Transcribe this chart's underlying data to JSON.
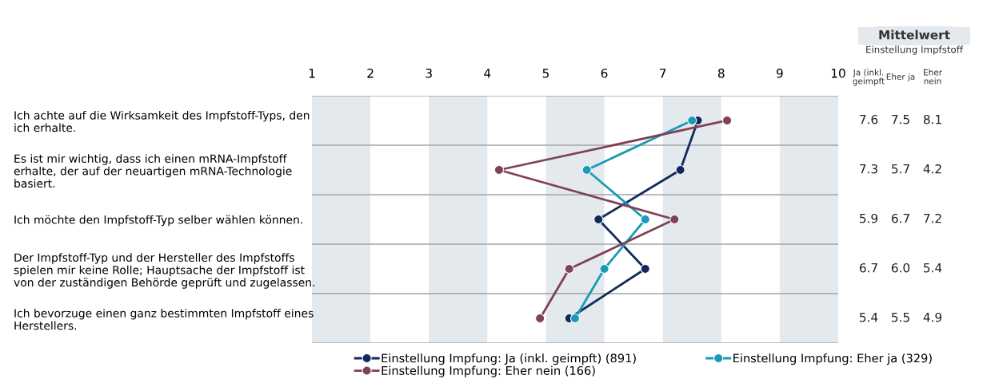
{
  "chart_data": {
    "type": "line",
    "orientation": "horizontal",
    "categories": [
      "Ich achte auf die Wirksamkeit des Impfstoff-Typs, den\nich erhalte.",
      "Es ist mir wichtig, dass ich einen mRNA-Impfstoff\nerhalte, der auf der neuartigen mRNA-Technologie\nbasiert.",
      "Ich möchte den Impfstoff-Typ selber wählen können.",
      "Der Impfstoff-Typ und der Hersteller des Impfstoffs\nspielen mir keine Rolle; Hauptsache der Impfstoff ist\nvon der zuständigen Behörde geprüft und zugelassen.",
      "Ich bevorzuge einen ganz bestimmten Impfstoff eines\nHerstellers."
    ],
    "series": [
      {
        "name": "Einstellung Impfung: Ja (inkl. geimpft) (891)",
        "color": "#13285a",
        "values": [
          7.6,
          7.3,
          5.9,
          6.7,
          5.4
        ],
        "value_labels": [
          "7.6",
          "7.3",
          "5.9",
          "6.7",
          "5.4"
        ]
      },
      {
        "name": "Einstellung Impfung: Eher ja (329)",
        "color": "#1a9ab3",
        "values": [
          7.5,
          5.7,
          6.7,
          6.0,
          5.5
        ],
        "value_labels": [
          "7.5",
          "5.7",
          "6.7",
          "6.0",
          "5.5"
        ]
      },
      {
        "name": "Einstellung Impfung: Eher nein (166)",
        "color": "#7e4255",
        "values": [
          8.1,
          4.2,
          7.2,
          5.4,
          4.9
        ],
        "value_labels": [
          "8.1",
          "4.2",
          "7.2",
          "5.4",
          "4.9"
        ]
      }
    ],
    "xlim": [
      1,
      10
    ],
    "xticks": [
      1,
      2,
      3,
      4,
      5,
      6,
      7,
      8,
      9,
      10
    ],
    "bands": [
      {
        "axis": "x",
        "from": 1,
        "to": 2,
        "color": "#e4e9ee"
      },
      {
        "axis": "x",
        "from": 3,
        "to": 4,
        "color": "#e4e9ee"
      },
      {
        "axis": "x",
        "from": 5,
        "to": 6,
        "color": "#e4e9ee"
      },
      {
        "axis": "x",
        "from": 7,
        "to": 8,
        "color": "#e4e9ee"
      },
      {
        "axis": "x",
        "from": 9,
        "to": 10,
        "color": "#e4e9ee"
      }
    ],
    "annotations": [
      "Mittelwert",
      "Einstellung Impfstoff",
      "Ja (inkl.\ngeimpft",
      "Eher ja",
      "Eher\nnein"
    ],
    "marker": "circle",
    "line_style": "solid",
    "legend": "bottom",
    "grid": false
  }
}
